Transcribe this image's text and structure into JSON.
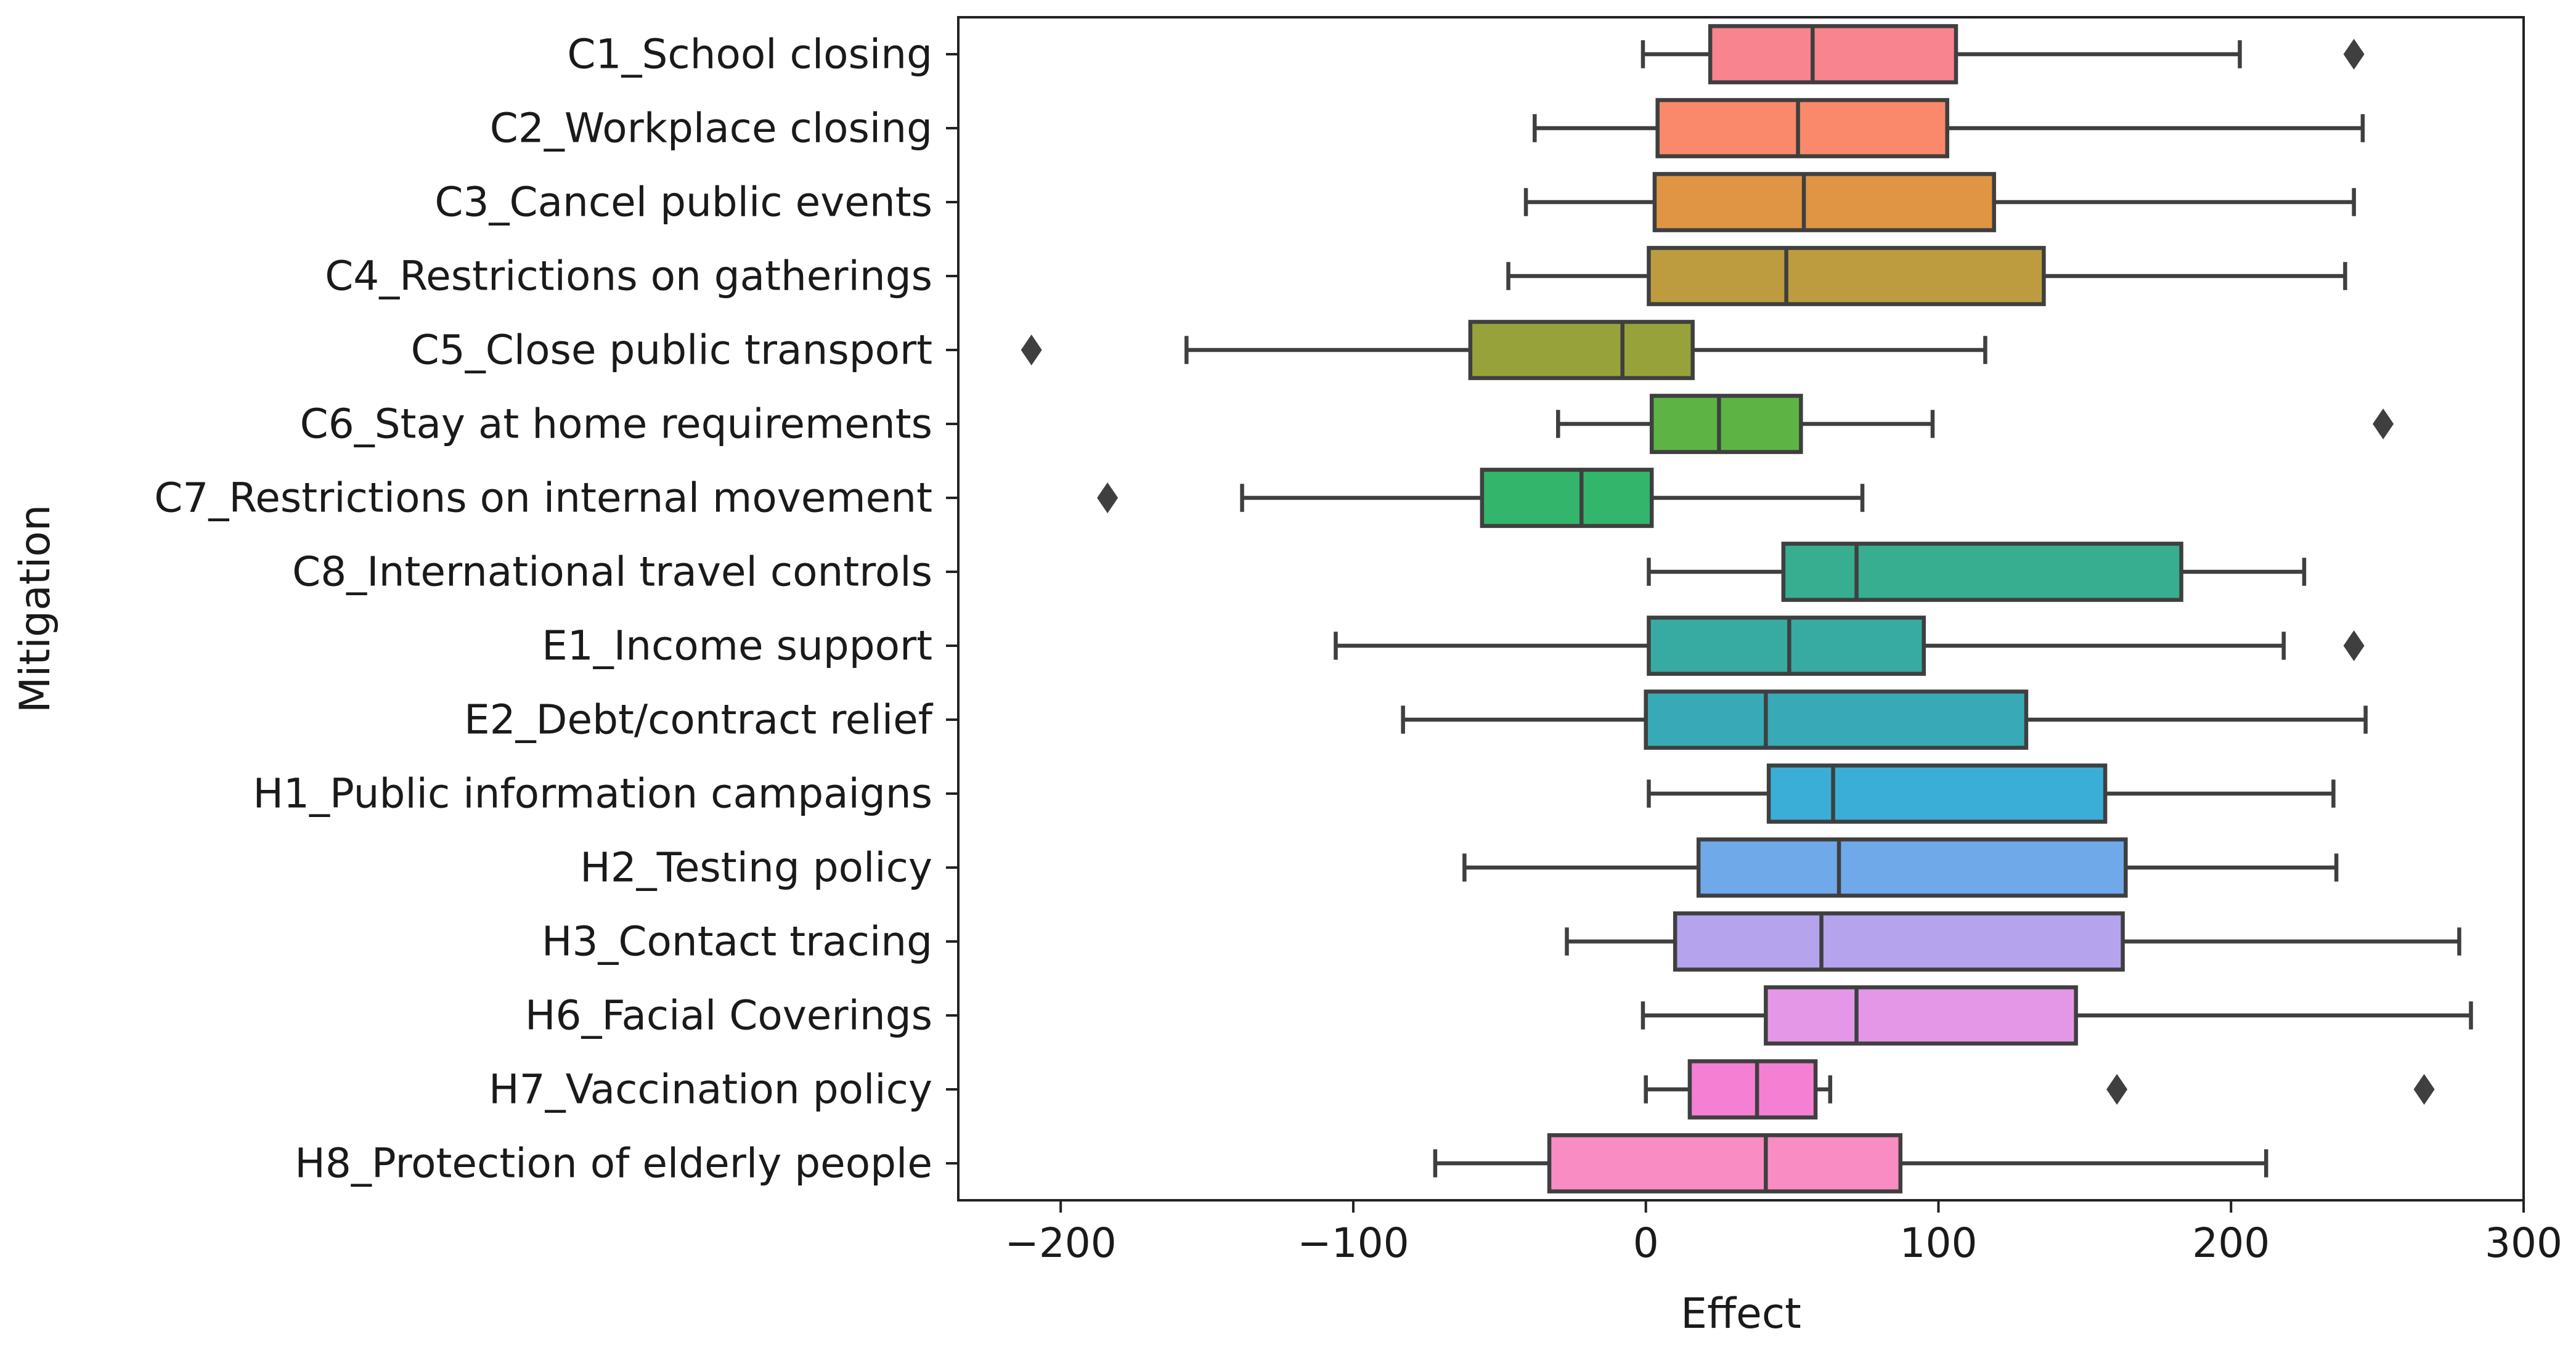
{
  "chart_data": {
    "type": "boxplot",
    "orientation": "horizontal",
    "xlabel": "Effect",
    "ylabel": "Mitigation",
    "xlim": [
      -235,
      300
    ],
    "xticks": [
      -200,
      -100,
      0,
      100,
      200,
      300
    ],
    "xtick_labels": [
      "−200",
      "−100",
      "0",
      "100",
      "200",
      "300"
    ],
    "grid": false,
    "categories": [
      "C1_School closing",
      "C2_Workplace closing",
      "C3_Cancel public events",
      "C4_Restrictions on gatherings",
      "C5_Close public transport",
      "C6_Stay at home requirements",
      "C7_Restrictions on internal movement",
      "C8_International travel controls",
      "E1_Income support",
      "E2_Debt/contract relief",
      "H1_Public information campaigns",
      "H2_Testing policy",
      "H3_Contact tracing",
      "H6_Facial Coverings",
      "H7_Vaccination policy",
      "H8_Protection of elderly people"
    ],
    "boxes": [
      {
        "whisker_low": -1,
        "q1": 22,
        "median": 57,
        "q3": 106,
        "whisker_high": 203,
        "outliers": [
          242
        ],
        "color": "#f7848f"
      },
      {
        "whisker_low": -38,
        "q1": 4,
        "median": 52,
        "q3": 103,
        "whisker_high": 245,
        "outliers": [],
        "color": "#f9896a"
      },
      {
        "whisker_low": -41,
        "q1": 3,
        "median": 54,
        "q3": 119,
        "whisker_high": 242,
        "outliers": [],
        "color": "#df9543"
      },
      {
        "whisker_low": -47,
        "q1": 1,
        "median": 48,
        "q3": 136,
        "whisker_high": 239,
        "outliers": [],
        "color": "#bd9c3f"
      },
      {
        "whisker_low": -157,
        "q1": -60,
        "median": -8,
        "q3": 16,
        "whisker_high": 116,
        "outliers": [
          -210
        ],
        "color": "#98a23b"
      },
      {
        "whisker_low": -30,
        "q1": 2,
        "median": 25,
        "q3": 53,
        "whisker_high": 98,
        "outliers": [
          252
        ],
        "color": "#5db444"
      },
      {
        "whisker_low": -138,
        "q1": -56,
        "median": -22,
        "q3": 2,
        "whisker_high": 74,
        "outliers": [
          -184
        ],
        "color": "#33b56c"
      },
      {
        "whisker_low": 1,
        "q1": 47,
        "median": 72,
        "q3": 183,
        "whisker_high": 225,
        "outliers": [],
        "color": "#36ae8f"
      },
      {
        "whisker_low": -106,
        "q1": 1,
        "median": 49,
        "q3": 95,
        "whisker_high": 218,
        "outliers": [
          242
        ],
        "color": "#37aba2"
      },
      {
        "whisker_low": -83,
        "q1": 0,
        "median": 41,
        "q3": 130,
        "whisker_high": 246,
        "outliers": [],
        "color": "#38aab7"
      },
      {
        "whisker_low": 1,
        "q1": 42,
        "median": 64,
        "q3": 157,
        "whisker_high": 235,
        "outliers": [],
        "color": "#3aaed7"
      },
      {
        "whisker_low": -62,
        "q1": 18,
        "median": 66,
        "q3": 164,
        "whisker_high": 236,
        "outliers": [],
        "color": "#6fa9ea"
      },
      {
        "whisker_low": -27,
        "q1": 10,
        "median": 60,
        "q3": 163,
        "whisker_high": 278,
        "outliers": [],
        "color": "#b6a3ee"
      },
      {
        "whisker_low": -1,
        "q1": 41,
        "median": 72,
        "q3": 147,
        "whisker_high": 282,
        "outliers": [],
        "color": "#e497e6"
      },
      {
        "whisker_low": 0,
        "q1": 15,
        "median": 38,
        "q3": 58,
        "whisker_high": 63,
        "outliers": [
          161,
          266
        ],
        "color": "#f57fd3"
      },
      {
        "whisker_low": -72,
        "q1": -33,
        "median": 41,
        "q3": 87,
        "whisker_high": 212,
        "outliers": [],
        "color": "#f88cc3"
      }
    ]
  }
}
